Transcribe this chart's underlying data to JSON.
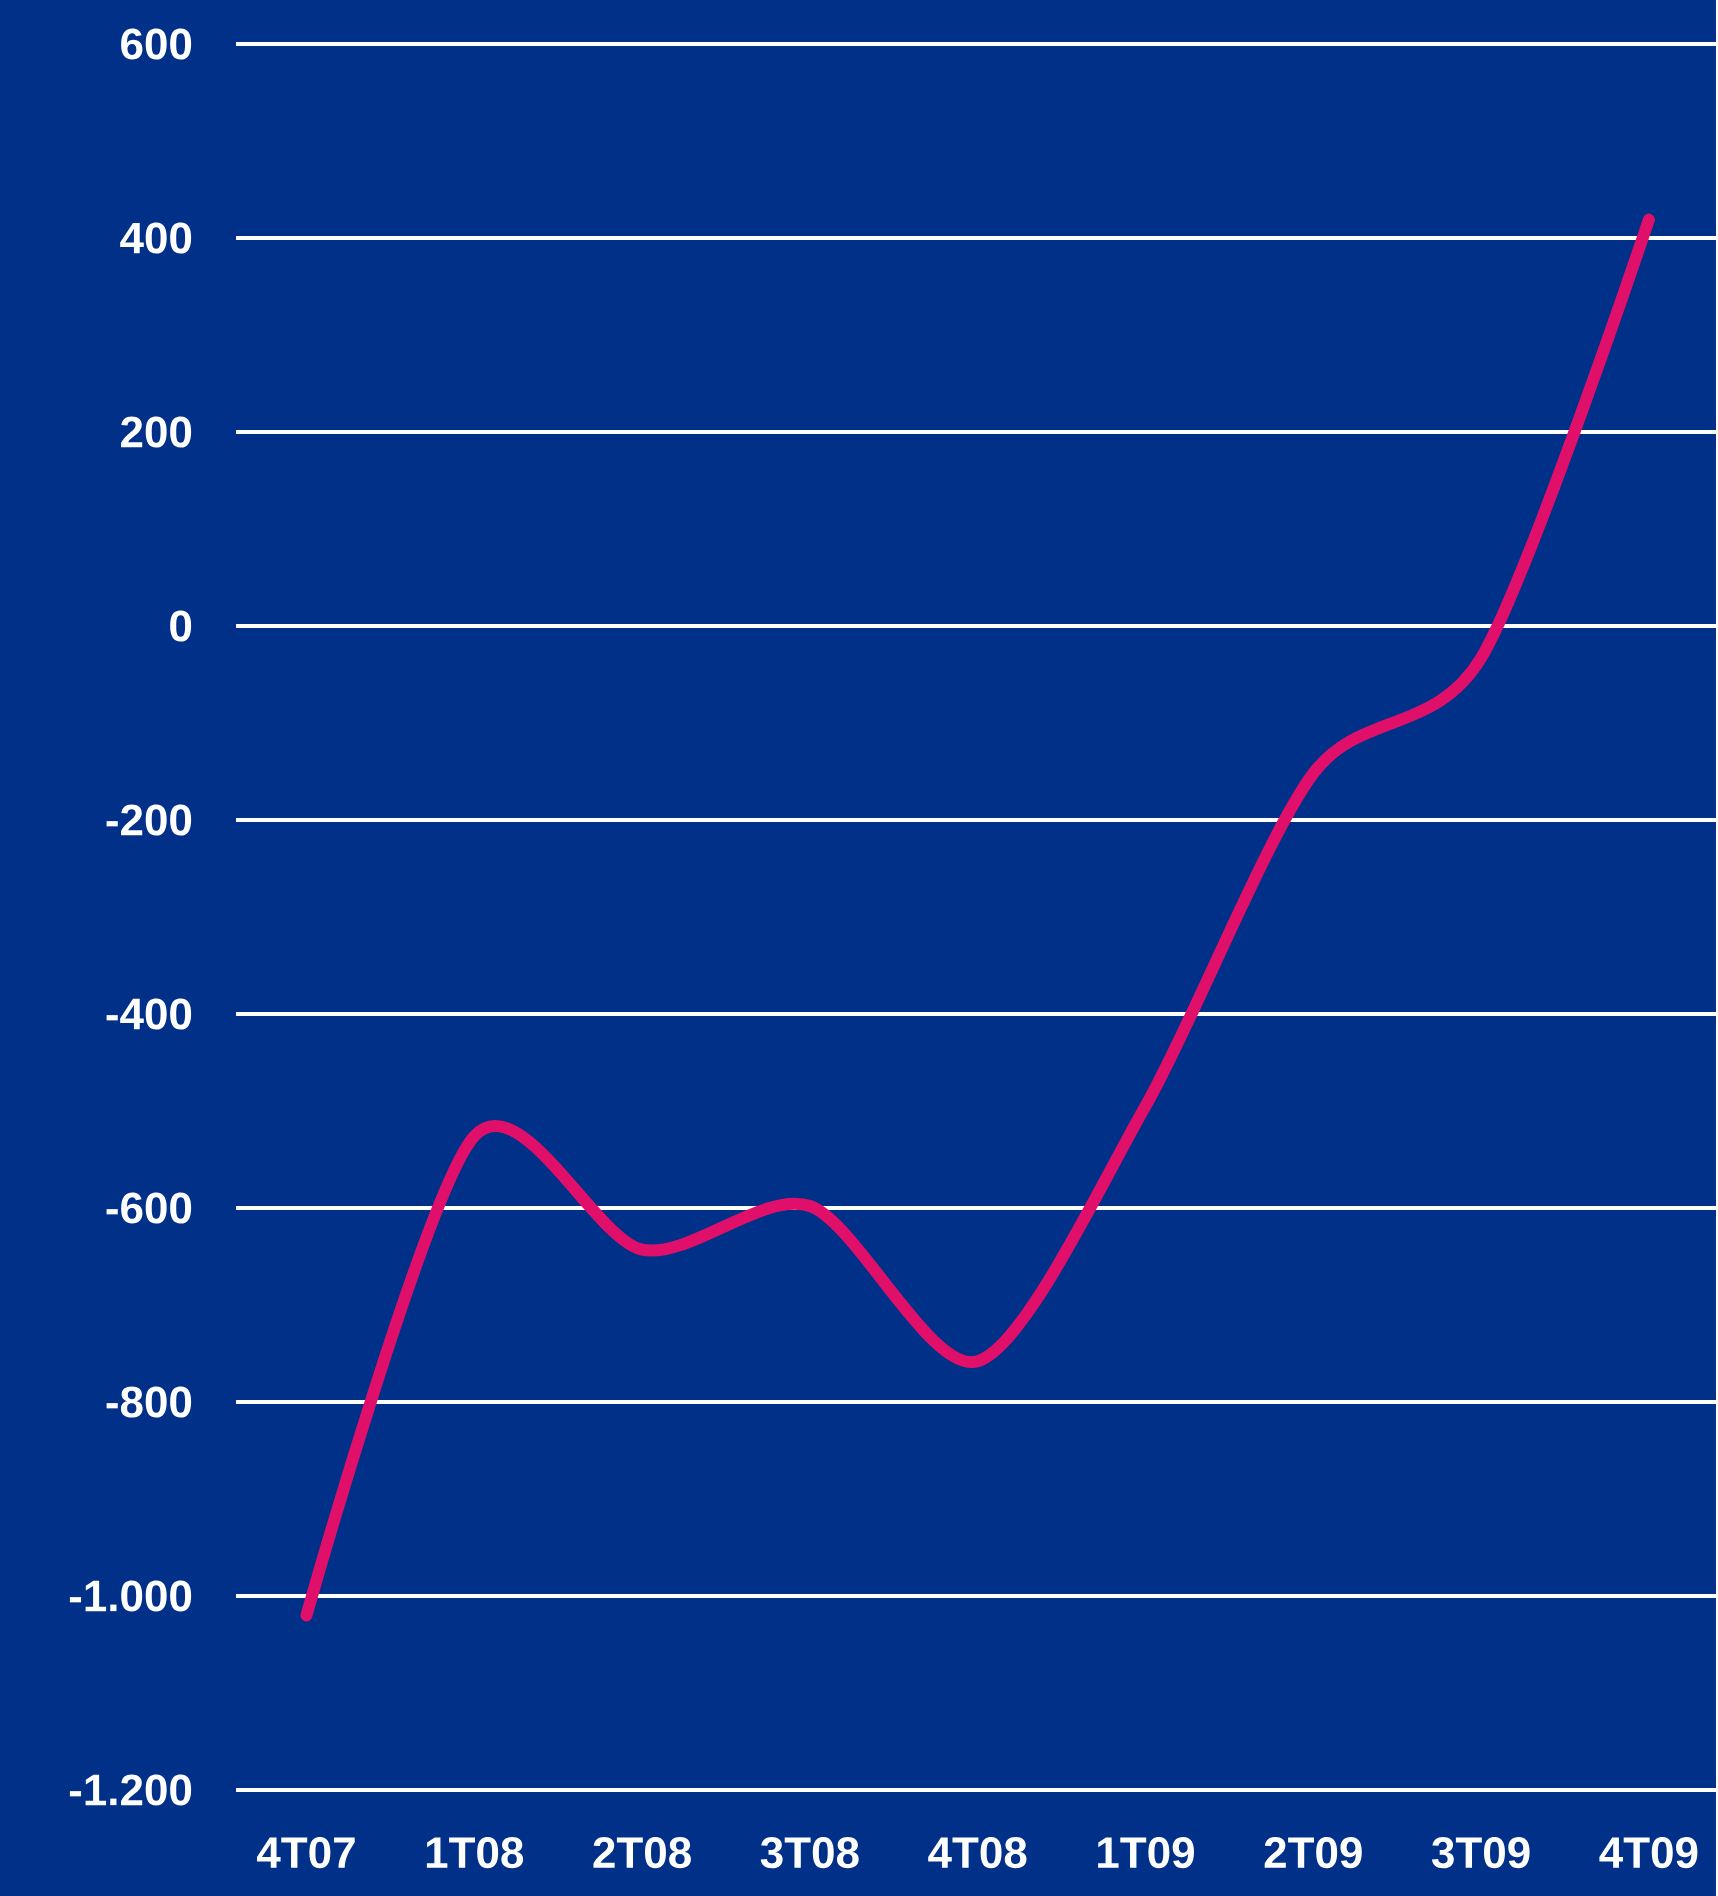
{
  "chart_data": {
    "type": "line",
    "categories": [
      "4T07",
      "1T08",
      "2T08",
      "3T08",
      "4T08",
      "1T09",
      "2T09",
      "3T09",
      "4T09"
    ],
    "series": [
      {
        "color": "#e0106a",
        "values": [
          -1020,
          -526,
          -643,
          -598,
          -758,
          -495,
          -152,
          -33,
          419
        ]
      }
    ],
    "ylim": [
      -1200,
      600
    ],
    "yticks": [
      {
        "value": -1200,
        "label": "-1.200"
      },
      {
        "value": -1000,
        "label": "-1.000"
      },
      -800,
      -600,
      -400,
      -200,
      0,
      200,
      400,
      600
    ],
    "grid": "y",
    "marker": "none",
    "line_style": "solid"
  }
}
